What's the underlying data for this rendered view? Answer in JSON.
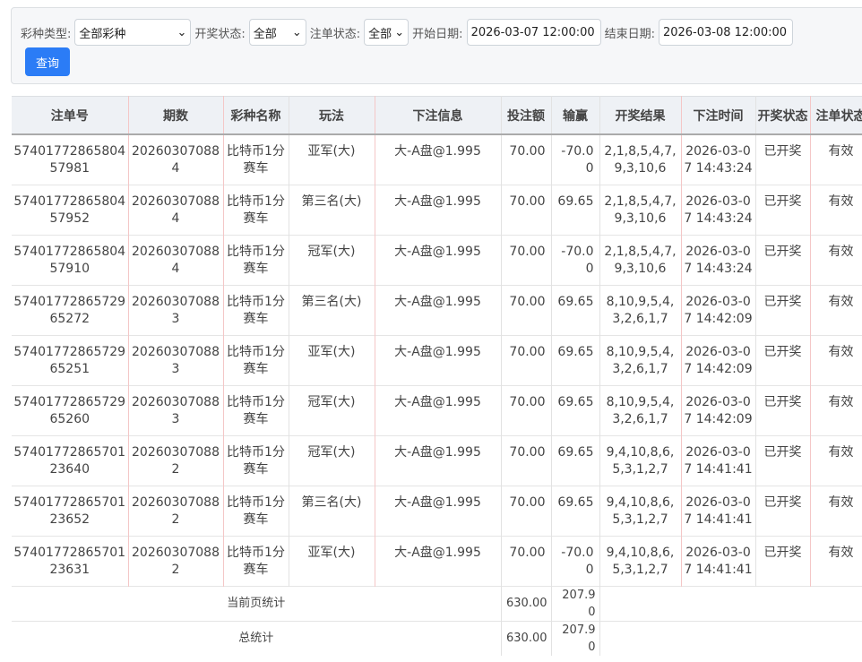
{
  "filters": {
    "lottery_type_label": "彩种类型:",
    "lottery_type_value": "全部彩种",
    "draw_status_label": "开奖状态:",
    "draw_status_value": "全部",
    "bet_status_label": "注单状态:",
    "bet_status_value": "全部",
    "start_label": "开始日期:",
    "start_value": "2026-03-07 12:00:00",
    "end_label": "结束日期:",
    "end_value": "2026-03-08 12:00:00",
    "query_label": "查询"
  },
  "table": {
    "headers": [
      "注单号",
      "期数",
      "彩种名称",
      "玩法",
      "下注信息",
      "投注额",
      "输赢",
      "开奖结果",
      "下注时间",
      "开奖状态",
      "注单状态"
    ],
    "rows": [
      [
        "5740177286580457981",
        "202603070884",
        "比特币1分赛车",
        "亚军(大)",
        "大-A盘@1.995",
        "70.00",
        "-70.00",
        "2,1,8,5,4,7,9,3,10,6",
        "2026-03-07 14:43:24",
        "已开奖",
        "有效"
      ],
      [
        "5740177286580457952",
        "202603070884",
        "比特币1分赛车",
        "第三名(大)",
        "大-A盘@1.995",
        "70.00",
        "69.65",
        "2,1,8,5,4,7,9,3,10,6",
        "2026-03-07 14:43:24",
        "已开奖",
        "有效"
      ],
      [
        "5740177286580457910",
        "202603070884",
        "比特币1分赛车",
        "冠军(大)",
        "大-A盘@1.995",
        "70.00",
        "-70.00",
        "2,1,8,5,4,7,9,3,10,6",
        "2026-03-07 14:43:24",
        "已开奖",
        "有效"
      ],
      [
        "5740177286572965272",
        "202603070883",
        "比特币1分赛车",
        "第三名(大)",
        "大-A盘@1.995",
        "70.00",
        "69.65",
        "8,10,9,5,4,3,2,6,1,7",
        "2026-03-07 14:42:09",
        "已开奖",
        "有效"
      ],
      [
        "5740177286572965251",
        "202603070883",
        "比特币1分赛车",
        "亚军(大)",
        "大-A盘@1.995",
        "70.00",
        "69.65",
        "8,10,9,5,4,3,2,6,1,7",
        "2026-03-07 14:42:09",
        "已开奖",
        "有效"
      ],
      [
        "5740177286572965260",
        "202603070883",
        "比特币1分赛车",
        "冠军(大)",
        "大-A盘@1.995",
        "70.00",
        "69.65",
        "8,10,9,5,4,3,2,6,1,7",
        "2026-03-07 14:42:09",
        "已开奖",
        "有效"
      ],
      [
        "5740177286570123640",
        "202603070882",
        "比特币1分赛车",
        "冠军(大)",
        "大-A盘@1.995",
        "70.00",
        "69.65",
        "9,4,10,8,6,5,3,1,2,7",
        "2026-03-07 14:41:41",
        "已开奖",
        "有效"
      ],
      [
        "5740177286570123652",
        "202603070882",
        "比特币1分赛车",
        "第三名(大)",
        "大-A盘@1.995",
        "70.00",
        "69.65",
        "9,4,10,8,6,5,3,1,2,7",
        "2026-03-07 14:41:41",
        "已开奖",
        "有效"
      ],
      [
        "5740177286570123631",
        "202603070882",
        "比特币1分赛车",
        "亚军(大)",
        "大-A盘@1.995",
        "70.00",
        "-70.00",
        "9,4,10,8,6,5,3,1,2,7",
        "2026-03-07 14:41:41",
        "已开奖",
        "有效"
      ]
    ],
    "page_summary": {
      "label": "当前页统计",
      "amount": "630.00",
      "win": "207.90"
    },
    "total_summary": {
      "label": "总统计",
      "amount": "630.00",
      "win": "207.90"
    }
  }
}
